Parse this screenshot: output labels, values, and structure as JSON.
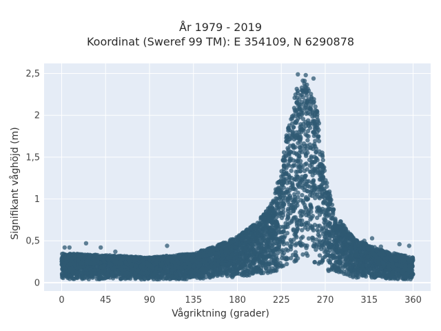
{
  "chart_data": {
    "type": "scatter",
    "title": "År 1979 - 2019",
    "subtitle": "Koordinat (Sweref 99 TM): E 354109, N 6290878",
    "xlabel": "Vågriktning (grader)",
    "ylabel": "Signifikant våghöjd (m)",
    "xlim": [
      -18,
      378
    ],
    "ylim": [
      -0.1,
      2.62
    ],
    "xticks": [
      0,
      45,
      90,
      135,
      180,
      225,
      270,
      315,
      360
    ],
    "xtick_labels": [
      "0",
      "45",
      "90",
      "135",
      "180",
      "225",
      "270",
      "315",
      "360"
    ],
    "yticks": [
      0,
      0.5,
      1,
      1.5,
      2,
      2.5
    ],
    "ytick_labels": [
      "0",
      "0,5",
      "1",
      "1,5",
      "2",
      "2,5"
    ],
    "grid": true,
    "background": "#e5ecf6",
    "marker_color": "#2f5a73",
    "envelope": {
      "x": [
        0,
        45,
        90,
        135,
        160,
        180,
        200,
        215,
        225,
        232,
        240,
        248,
        255,
        262,
        270,
        280,
        300,
        315,
        330,
        360
      ],
      "y_upper": [
        0.35,
        0.33,
        0.3,
        0.35,
        0.45,
        0.55,
        0.72,
        0.95,
        1.35,
        1.9,
        2.3,
        2.45,
        2.35,
        2.05,
        1.3,
        0.82,
        0.52,
        0.45,
        0.38,
        0.3
      ]
    },
    "outliers": {
      "x": [
        3,
        8,
        25,
        40,
        55,
        108,
        165,
        242,
        250,
        258,
        276,
        292,
        310,
        318,
        327,
        346,
        356
      ],
      "y": [
        0.42,
        0.42,
        0.47,
        0.42,
        0.37,
        0.44,
        0.47,
        2.49,
        2.48,
        2.44,
        0.99,
        0.56,
        0.5,
        0.53,
        0.43,
        0.46,
        0.44
      ]
    }
  }
}
